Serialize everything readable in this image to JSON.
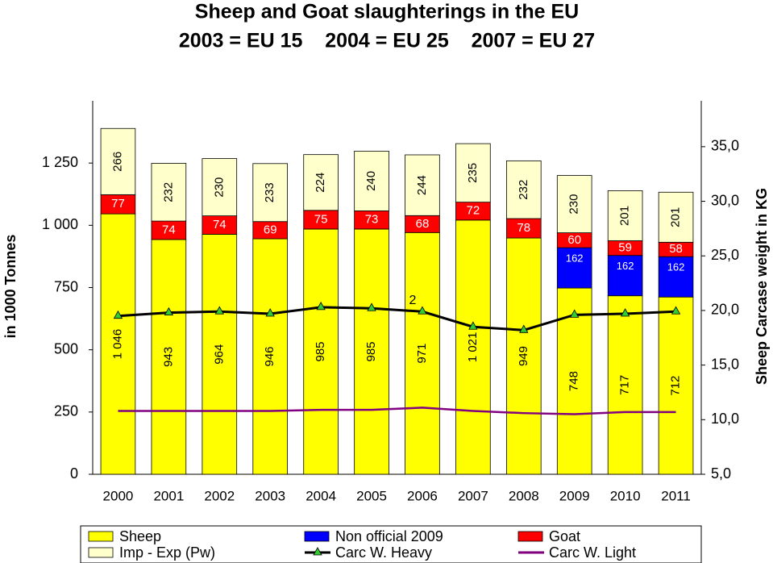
{
  "chart_data": {
    "type": "bar",
    "title": "Sheep and Goat slaughterings in the EU",
    "subtitle": "2003 = EU 15    2004 = EU 25    2007 = EU 27",
    "ylabel": "in 1000 Tonnes",
    "y2label": "Sheep Carcase weight in KG",
    "annotation": "2",
    "categories": [
      "2000",
      "2001",
      "2002",
      "2003",
      "2004",
      "2005",
      "2006",
      "2007",
      "2008",
      "2009",
      "2010",
      "2011"
    ],
    "ylim": [
      0,
      1500
    ],
    "yticks": [
      0,
      250,
      500,
      750,
      {
        "value": 1000,
        "label": "1 000"
      },
      {
        "value": 1250,
        "label": "1 250"
      }
    ],
    "y2lim": [
      5,
      39.2
    ],
    "y2ticks": [
      {
        "value": 5,
        "label": "5,0"
      },
      {
        "value": 10,
        "label": "10,0"
      },
      {
        "value": 15,
        "label": "15,0"
      },
      {
        "value": 20,
        "label": "20,0"
      },
      {
        "value": 25,
        "label": "25,0"
      },
      {
        "value": 30,
        "label": "30,0"
      },
      {
        "value": 35,
        "label": "35,0"
      }
    ],
    "series": [
      {
        "name": "Sheep",
        "color": "#ffff00",
        "values": [
          1046,
          943,
          964,
          946,
          985,
          985,
          971,
          1021,
          949,
          748,
          717,
          712
        ],
        "value_labels": [
          "1 046",
          "943",
          "964",
          "946",
          "985",
          "985",
          "971",
          "1 021",
          "949",
          "748",
          "717",
          "712"
        ]
      },
      {
        "name": "Non official 2009",
        "color": "#0000ff",
        "values": [
          null,
          null,
          null,
          null,
          null,
          null,
          null,
          null,
          null,
          162,
          162,
          162
        ]
      },
      {
        "name": "Goat",
        "color": "#ff0000",
        "values": [
          77,
          74,
          74,
          69,
          75,
          73,
          68,
          72,
          78,
          60,
          59,
          58
        ]
      },
      {
        "name": "Imp - Exp (Pw)",
        "color": "#ffffcc",
        "values": [
          266,
          232,
          230,
          233,
          224,
          240,
          244,
          235,
          232,
          230,
          201,
          201
        ]
      },
      {
        "name": "Carc W. Heavy",
        "color": "#000000",
        "axis": "y2",
        "marker": "triangle",
        "values": [
          19.5,
          19.8,
          19.9,
          19.7,
          20.3,
          20.2,
          19.9,
          18.5,
          18.2,
          19.6,
          19.7,
          19.9
        ]
      },
      {
        "name": "Carc W. Light",
        "color": "#800080",
        "axis": "y2",
        "values": [
          10.8,
          10.8,
          10.8,
          10.8,
          10.9,
          10.9,
          11.1,
          10.8,
          10.6,
          10.5,
          10.7,
          10.7
        ]
      }
    ]
  }
}
